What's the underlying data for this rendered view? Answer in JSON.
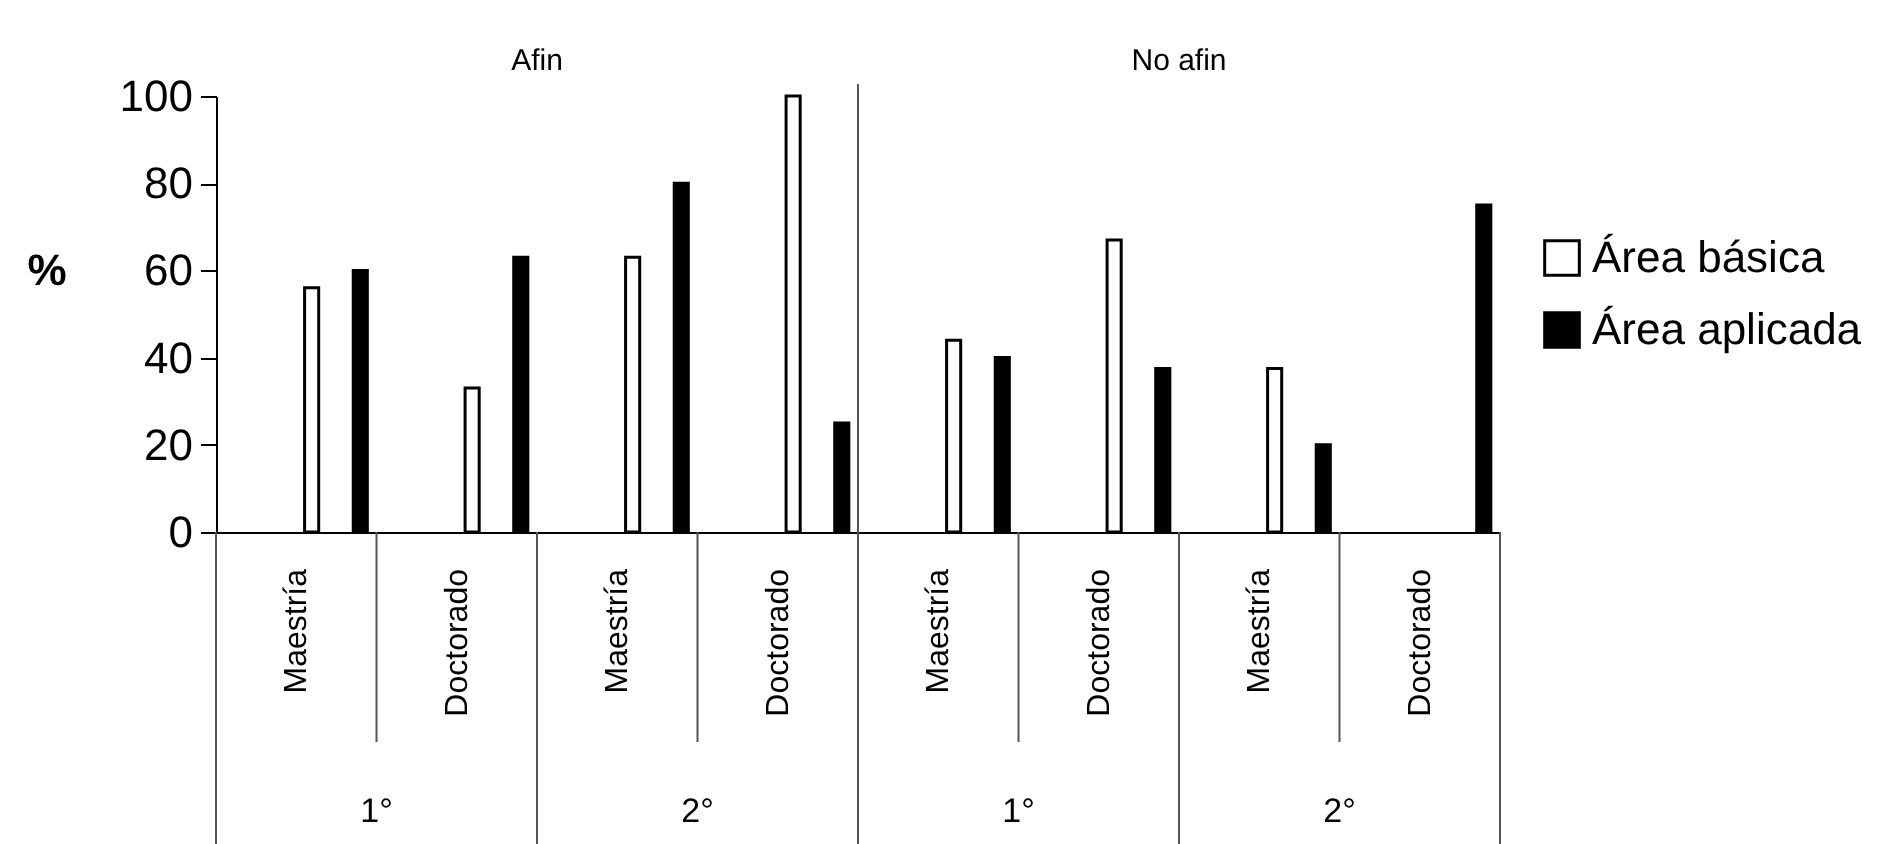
{
  "chart_data": {
    "type": "bar",
    "ylabel": "%",
    "categories": [
      "Maestría",
      "Doctorado",
      "Maestría",
      "Doctorado",
      "Maestría",
      "Doctorado",
      "Maestría",
      "Doctorado"
    ],
    "series": [
      {
        "name": "Área básica",
        "color": "#ffffff",
        "values": [
          56,
          33,
          63,
          100,
          44,
          67,
          37.5,
          null
        ]
      },
      {
        "name": "Área aplicada",
        "color": "#000000",
        "values": [
          60,
          63,
          80,
          25,
          40,
          37.5,
          20,
          75
        ]
      }
    ],
    "annotations": [
      "1°",
      "2°",
      "1°",
      "2°",
      "Afin",
      "No afin"
    ],
    "ylim": [
      0,
      100
    ],
    "yticks": [
      0,
      20,
      40,
      60,
      80,
      100
    ],
    "grid": false,
    "legend": "right"
  }
}
